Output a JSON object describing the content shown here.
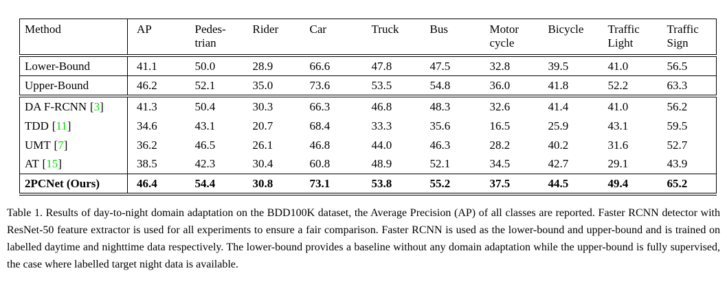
{
  "document": {
    "background": "#ffffff",
    "text_color": "#000000",
    "citation_color": "#00dd00",
    "rule_color": "#000000"
  },
  "table": {
    "columns": [
      {
        "label": "Method"
      },
      {
        "label": "AP"
      },
      {
        "label": "Pedes-\ntrian"
      },
      {
        "label": "Rider"
      },
      {
        "label": "Car"
      },
      {
        "label": "Truck"
      },
      {
        "label": "Bus"
      },
      {
        "label": "Motor\ncycle"
      },
      {
        "label": "Bicycle"
      },
      {
        "label": "Traffic\nLight"
      },
      {
        "label": "Traffic\nSign"
      }
    ],
    "citation_brackets": {
      "open": "[",
      "close": "]"
    },
    "rows": [
      {
        "method": "Lower-Bound",
        "values": [
          "41.1",
          "50.0",
          "28.9",
          "66.6",
          "47.8",
          "47.5",
          "32.8",
          "39.5",
          "41.0",
          "56.5"
        ]
      },
      {
        "method": "Upper-Bound",
        "values": [
          "46.2",
          "52.1",
          "35.0",
          "73.6",
          "53.5",
          "54.8",
          "36.0",
          "41.8",
          "52.2",
          "63.3"
        ]
      },
      {
        "method": "DA F-RCNN",
        "cite": "3",
        "values": [
          "41.3",
          "50.4",
          "30.3",
          "66.3",
          "46.8",
          "48.3",
          "32.6",
          "41.4",
          "41.0",
          "56.2"
        ]
      },
      {
        "method": "TDD",
        "cite": "11",
        "values": [
          "34.6",
          "43.1",
          "20.7",
          "68.4",
          "33.3",
          "35.6",
          "16.5",
          "25.9",
          "43.1",
          "59.5"
        ]
      },
      {
        "method": "UMT",
        "cite": "7",
        "values": [
          "36.2",
          "46.5",
          "26.1",
          "46.8",
          "44.0",
          "46.3",
          "28.2",
          "40.2",
          "31.6",
          "52.7"
        ]
      },
      {
        "method": "AT",
        "cite": "15",
        "values": [
          "38.5",
          "42.3",
          "30.4",
          "60.8",
          "48.9",
          "52.1",
          "34.5",
          "42.7",
          "29.1",
          "43.9"
        ]
      },
      {
        "method": "2PCNet (Ours)",
        "values": [
          "46.4",
          "54.4",
          "30.8",
          "73.1",
          "53.8",
          "55.2",
          "37.5",
          "44.5",
          "49.4",
          "65.2"
        ]
      }
    ]
  },
  "caption": {
    "text": "Table 1. Results of day-to-night domain adaptation on the BDD100K dataset, the Average Precision (AP) of all classes are reported. Faster RCNN detector with ResNet-50 feature extractor is used for all experiments to ensure a fair comparison. Faster RCNN is used as the lower-bound and upper-bound and is trained on labelled daytime and nighttime data respectively. The lower-bound provides a baseline without any domain adaptation while the upper-bound is fully supervised, the case where labelled target night data is available."
  }
}
